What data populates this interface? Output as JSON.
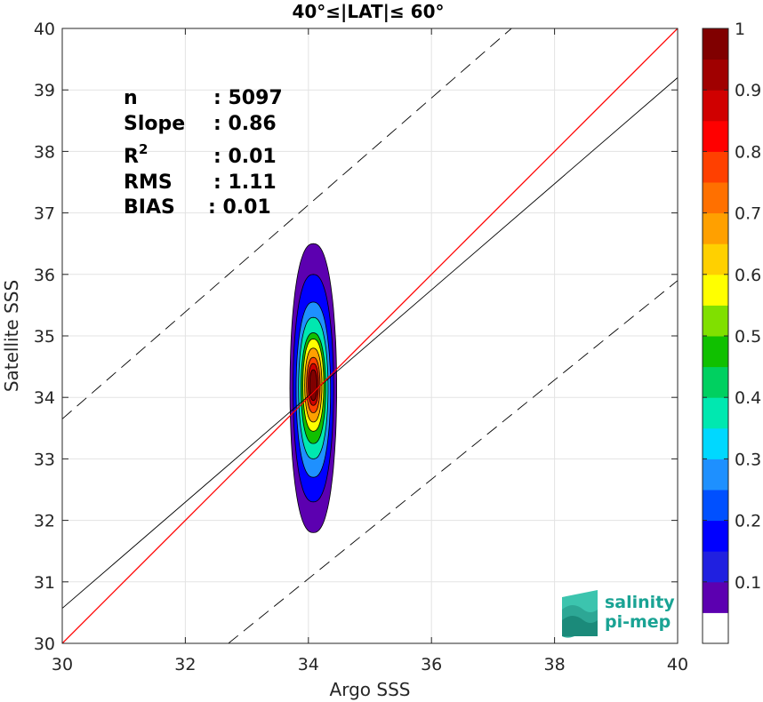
{
  "chart_data": {
    "type": "contour-density-scatter",
    "title": "40°≤|LAT|≤ 60°",
    "xlabel": "Argo SSS",
    "ylabel": "Satellite SSS",
    "xlim": [
      30,
      40
    ],
    "ylim": [
      30,
      40
    ],
    "xticks": [
      "30",
      "32",
      "34",
      "36",
      "38",
      "40"
    ],
    "yticks": [
      "30",
      "31",
      "32",
      "33",
      "34",
      "35",
      "36",
      "37",
      "38",
      "39",
      "40"
    ],
    "grid": true,
    "stats": [
      {
        "name": "n",
        "value": ": 5097"
      },
      {
        "name": "Slope",
        "value": ": 0.86"
      },
      {
        "name": "R",
        "sup": "2",
        "value": ": 0.01"
      },
      {
        "name": "RMS",
        "value": ": 1.11"
      },
      {
        "name": "BIAS",
        "value": ": 0.01"
      }
    ],
    "lines": {
      "identity": {
        "slope": 1,
        "intercept": 0,
        "color": "#ff0000"
      },
      "fit": {
        "x0": 30,
        "y0": 30.57,
        "x1": 40,
        "y1": 39.2,
        "color": "#000000"
      },
      "upper_bound": {
        "x0": 30,
        "y0": 33.65,
        "x1": 37.3,
        "y1": 40.0,
        "color": "#000000",
        "dash": true
      },
      "lower_bound": {
        "x0": 32.7,
        "y0": 30.0,
        "x1": 40,
        "y1": 35.9,
        "color": "#000000",
        "dash": true
      }
    },
    "density_center": {
      "x": 34.08,
      "y": 34.15
    },
    "density_levels": [
      {
        "level": 0.05,
        "hw": 0.38,
        "top": 36.5,
        "bottom": 31.8
      },
      {
        "level": 0.15,
        "hw": 0.33,
        "top": 36.0,
        "bottom": 32.3
      },
      {
        "level": 0.25,
        "hw": 0.28,
        "top": 35.55,
        "bottom": 32.7
      },
      {
        "level": 0.35,
        "hw": 0.24,
        "top": 35.3,
        "bottom": 33.0
      },
      {
        "level": 0.45,
        "hw": 0.2,
        "top": 35.05,
        "bottom": 33.25
      },
      {
        "level": 0.55,
        "hw": 0.17,
        "top": 34.95,
        "bottom": 33.45
      },
      {
        "level": 0.65,
        "hw": 0.14,
        "top": 34.8,
        "bottom": 33.6
      },
      {
        "level": 0.75,
        "hw": 0.11,
        "top": 34.65,
        "bottom": 33.75
      },
      {
        "level": 0.85,
        "hw": 0.085,
        "top": 34.55,
        "bottom": 33.87
      },
      {
        "level": 0.95,
        "hw": 0.06,
        "top": 34.45,
        "bottom": 33.95
      }
    ],
    "colorbar": {
      "range": [
        0,
        1
      ],
      "ticks": [
        "0.1",
        "0.2",
        "0.3",
        "0.4",
        "0.5",
        "0.6",
        "0.7",
        "0.8",
        "0.9",
        "1"
      ],
      "colors": [
        "#ffffff",
        "#5c00b0",
        "#2020e0",
        "#0000ff",
        "#0050ff",
        "#1e90ff",
        "#00d8ff",
        "#00e8b0",
        "#00d060",
        "#10c000",
        "#80e000",
        "#ffff00",
        "#ffd000",
        "#ffa000",
        "#ff7000",
        "#ff4000",
        "#ff0000",
        "#d00000",
        "#a00000",
        "#800000"
      ]
    }
  },
  "logo": {
    "line1": "salinity",
    "line2": "pi-mep"
  }
}
